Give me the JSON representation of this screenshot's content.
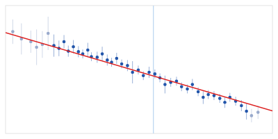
{
  "chart_data": {
    "type": "scatter",
    "tick_labels": false,
    "xlim": [
      0.0001,
      0.0038
    ],
    "ylim": [
      3.5,
      5.8
    ],
    "vline_x": 0.00215,
    "vline_color": "#aaccee",
    "series": [
      {
        "type": "scatter",
        "x": [
          0.0002,
          0.00032,
          0.00045,
          0.00053,
          0.00061,
          0.00069,
          0.00077,
          0.00084,
          0.00091,
          0.00097,
          0.00104,
          0.00111,
          0.00117,
          0.00124,
          0.00129,
          0.00137,
          0.00144,
          0.00151,
          0.00157,
          0.00164,
          0.00171,
          0.00179,
          0.00186,
          0.00194,
          0.00201,
          0.00209,
          0.00217,
          0.00224,
          0.00231,
          0.00239,
          0.00247,
          0.00254,
          0.00262,
          0.00269,
          0.00277,
          0.00284,
          0.00291,
          0.00299,
          0.00307,
          0.00314,
          0.00321,
          0.00329,
          0.00337,
          0.00344,
          0.00351,
          0.0036
        ],
        "values": [
          5.33,
          5.2,
          5.15,
          5.05,
          5.1,
          5.3,
          5.08,
          5.03,
          5.15,
          4.98,
          5.06,
          4.97,
          4.93,
          5.0,
          4.88,
          4.87,
          4.93,
          4.82,
          4.78,
          4.85,
          4.75,
          4.72,
          4.6,
          4.64,
          4.54,
          4.6,
          4.57,
          4.5,
          4.38,
          4.42,
          4.44,
          4.34,
          4.3,
          4.38,
          4.25,
          4.15,
          4.2,
          4.18,
          4.13,
          4.06,
          4.15,
          4.08,
          4.0,
          3.9,
          3.82,
          3.88
        ],
        "errors": [
          0.22,
          0.28,
          0.2,
          0.32,
          0.24,
          0.3,
          0.2,
          0.14,
          0.12,
          0.1,
          0.12,
          0.1,
          0.08,
          0.13,
          0.08,
          0.1,
          0.13,
          0.1,
          0.08,
          0.1,
          0.08,
          0.1,
          0.2,
          0.08,
          0.08,
          0.1,
          0.08,
          0.08,
          0.16,
          0.08,
          0.08,
          0.08,
          0.08,
          0.1,
          0.08,
          0.12,
          0.08,
          0.08,
          0.08,
          0.1,
          0.08,
          0.08,
          0.1,
          0.15,
          0.12,
          0.12
        ],
        "colors": [
          "#99aacc",
          "#99aacc",
          "#99aacc",
          "#99aacc",
          "#99aacc",
          "#99aacc",
          "#2255aa",
          "#2255aa",
          "#2255aa",
          "#2255aa",
          "#2255aa",
          "#2255aa",
          "#2255aa",
          "#2255aa",
          "#2255aa",
          "#2255aa",
          "#2255aa",
          "#2255aa",
          "#2255aa",
          "#2255aa",
          "#2255aa",
          "#2255aa",
          "#2255aa",
          "#2255aa",
          "#2255aa",
          "#2255aa",
          "#2255aa",
          "#2255aa",
          "#2255aa",
          "#2255aa",
          "#2255aa",
          "#2255aa",
          "#2255aa",
          "#2255aa",
          "#2255aa",
          "#2255aa",
          "#2255aa",
          "#2255aa",
          "#2255aa",
          "#2255aa",
          "#2255aa",
          "#2255aa",
          "#2255aa",
          "#2255aa",
          "#99aacc",
          "#99aacc"
        ]
      },
      {
        "type": "line",
        "x": [
          0.0001,
          0.0038
        ],
        "values": [
          5.312,
          3.906
        ],
        "color": "#dd2222"
      }
    ]
  }
}
